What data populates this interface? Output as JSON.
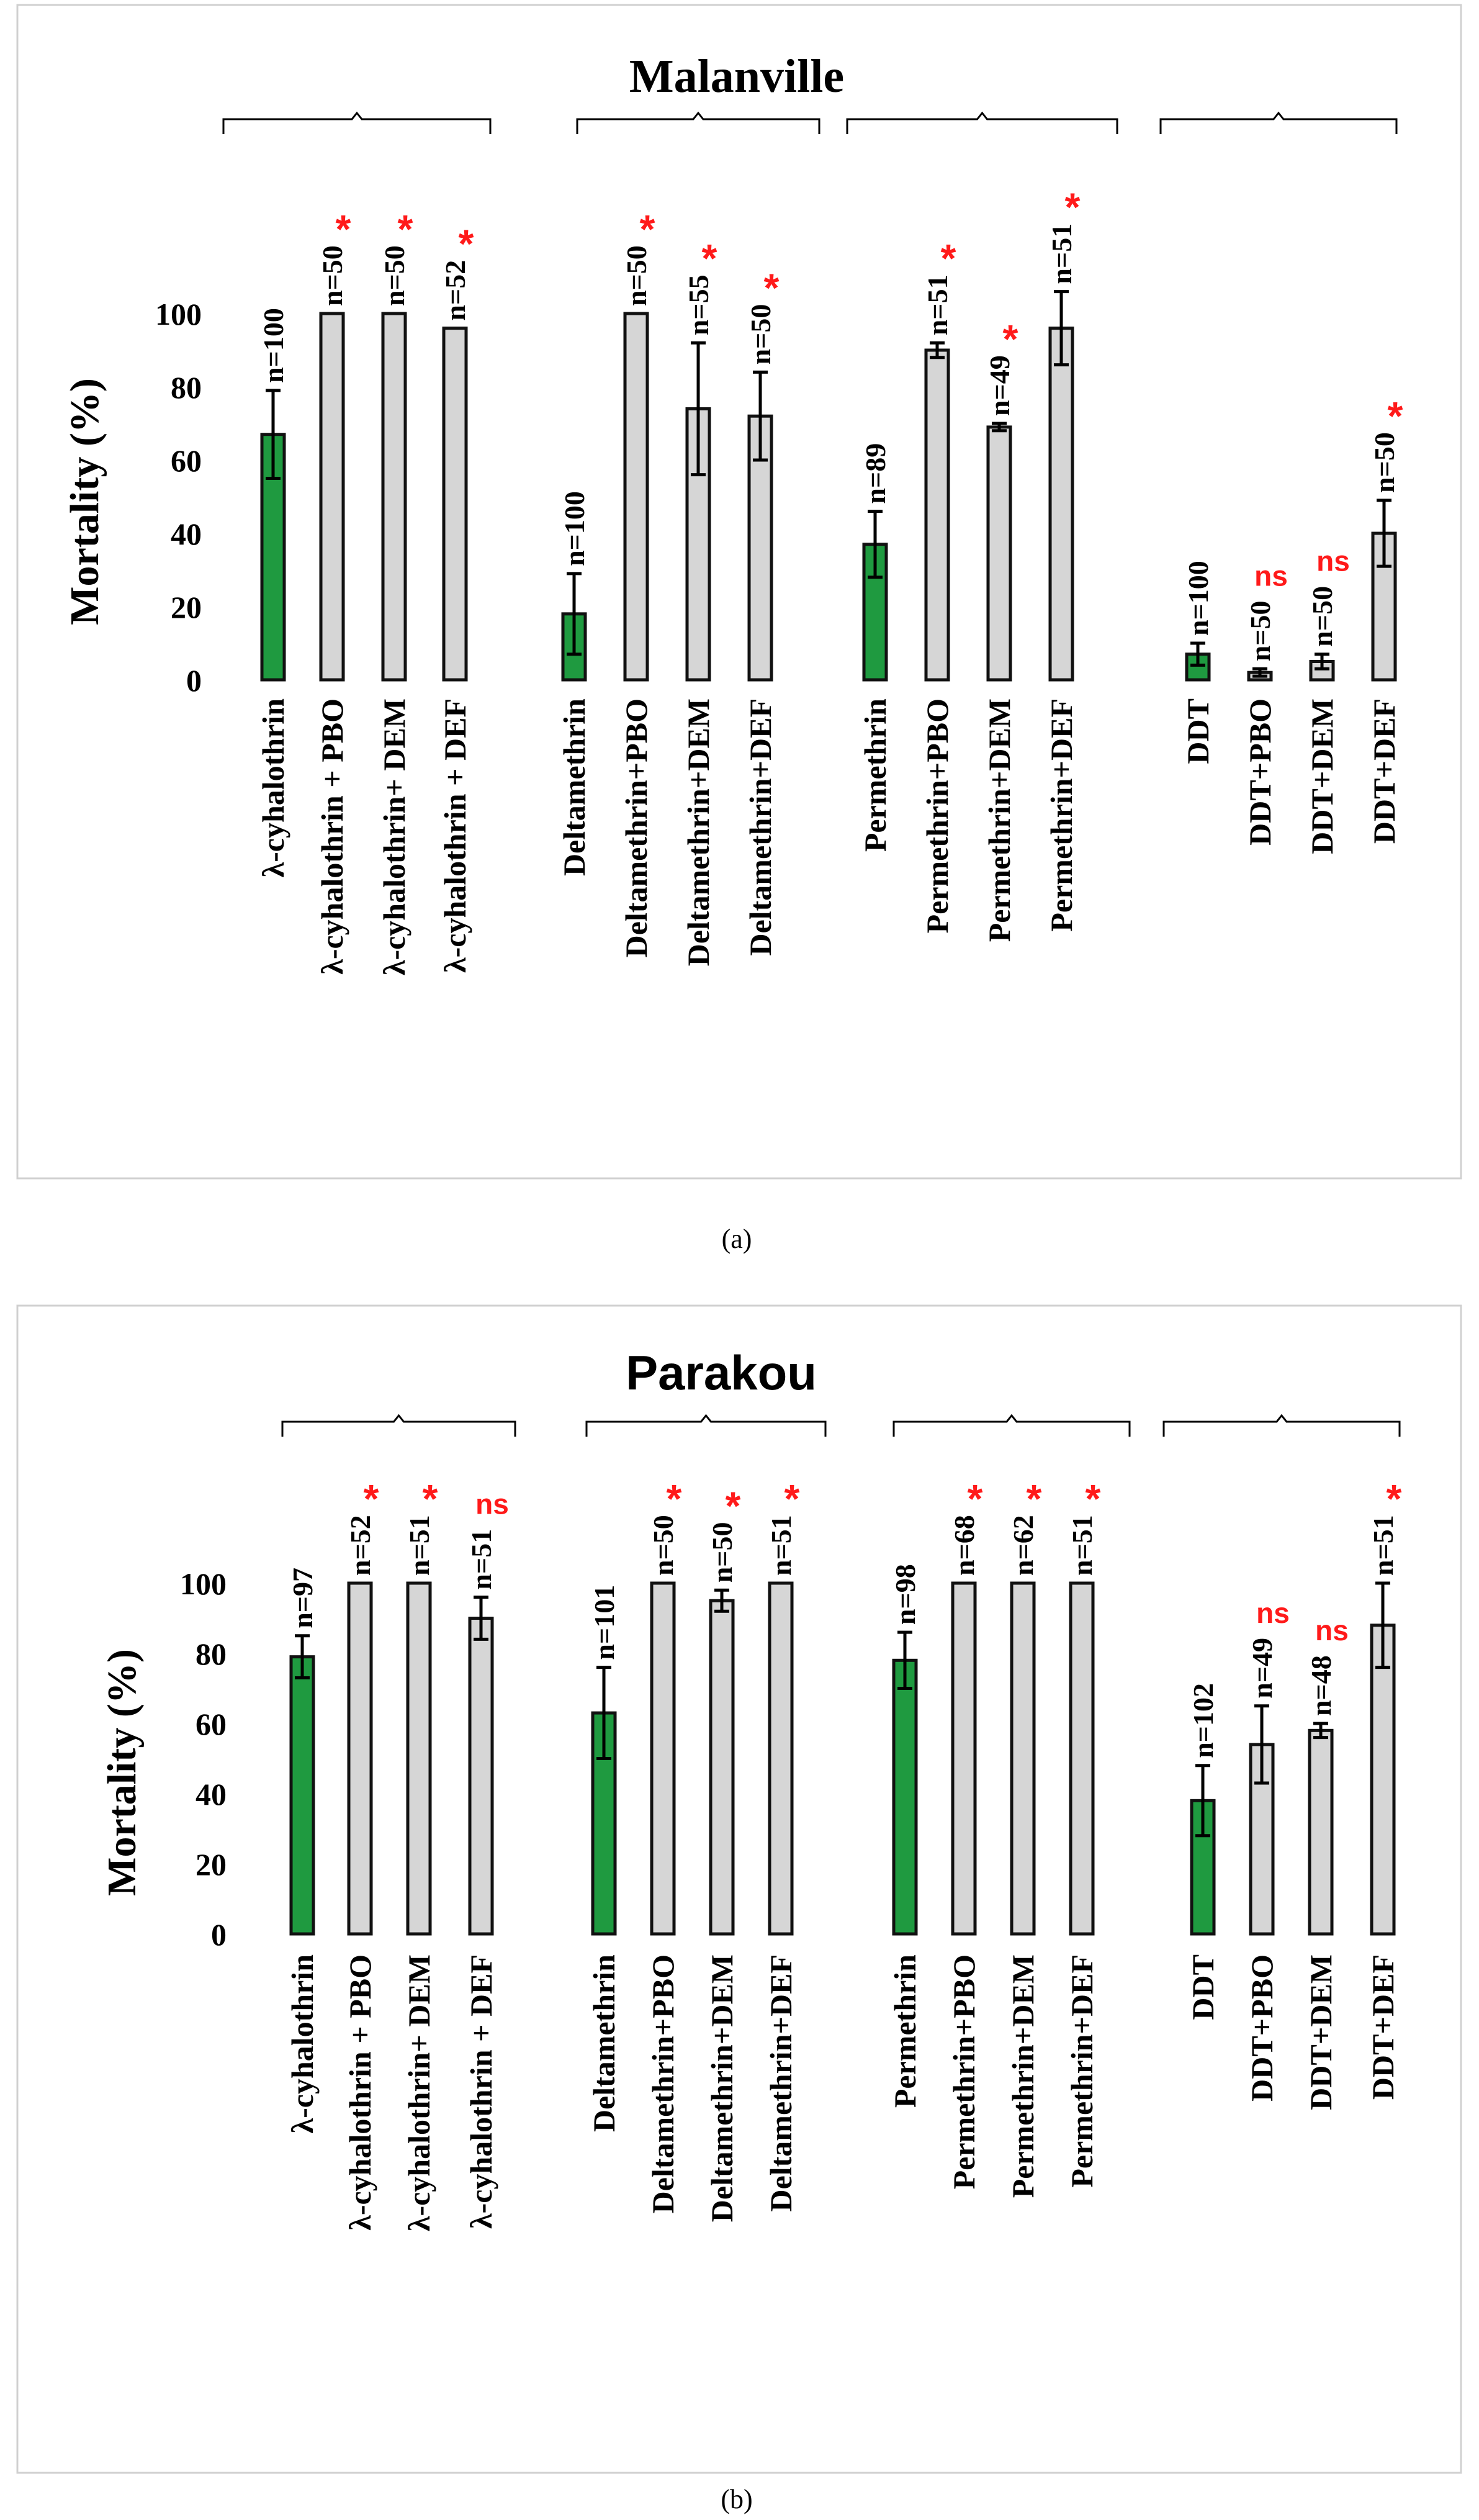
{
  "chart_data": [
    {
      "type": "bar",
      "caption": "(a)",
      "title": "Malanville",
      "ylabel": "Mortality (%)",
      "ylim": [
        0,
        100
      ],
      "yticks": [
        "0",
        "20",
        "40",
        "60",
        "80",
        "100"
      ],
      "groups": [
        {
          "bars": [
            {
              "label": "λ-cyhalothrin",
              "value": 67,
              "err": 12,
              "n": "n=100",
              "sig": "",
              "control": true
            },
            {
              "label": "λ-cyhalothrin + PBO",
              "value": 100,
              "err": 0,
              "n": "n=50",
              "sig": "*",
              "control": false
            },
            {
              "label": "λ-cyhalothrin+ DEM",
              "value": 100,
              "err": 0,
              "n": "n=50",
              "sig": "*",
              "control": false
            },
            {
              "label": "λ-cyhalothrin + DEF",
              "value": 96,
              "err": 0,
              "n": "n=52",
              "sig": "*",
              "control": false
            }
          ]
        },
        {
          "bars": [
            {
              "label": "Deltamethrin",
              "value": 18,
              "err": 11,
              "n": "n=100",
              "sig": "",
              "control": true
            },
            {
              "label": "Deltamethrin+PBO",
              "value": 100,
              "err": 0,
              "n": "n=50",
              "sig": "*",
              "control": false
            },
            {
              "label": "Deltamethrin+DEM",
              "value": 74,
              "err": 18,
              "n": "n=55",
              "sig": "*",
              "control": false
            },
            {
              "label": "Deltamethrin+DEF",
              "value": 72,
              "err": 12,
              "n": "n=50",
              "sig": "*",
              "control": false
            }
          ]
        },
        {
          "bars": [
            {
              "label": "Permethrin",
              "value": 37,
              "err": 9,
              "n": "n=89",
              "sig": "",
              "control": true
            },
            {
              "label": "Permethrin+PBO",
              "value": 90,
              "err": 2,
              "n": "n=51",
              "sig": "*",
              "control": false
            },
            {
              "label": "Permethrin+DEM",
              "value": 69,
              "err": 1,
              "n": "n=49",
              "sig": "*",
              "control": false
            },
            {
              "label": "Permethrin+DEF",
              "value": 96,
              "err": 10,
              "n": "n=51",
              "sig": "*",
              "control": false
            }
          ]
        },
        {
          "bars": [
            {
              "label": "DDT",
              "value": 7,
              "err": 3,
              "n": "n=100",
              "sig": "",
              "control": true
            },
            {
              "label": "DDT+PBO",
              "value": 2,
              "err": 1,
              "n": "n=50",
              "sig": "ns",
              "control": false
            },
            {
              "label": "DDT+DEM",
              "value": 5,
              "err": 2,
              "n": "n=50",
              "sig": "ns",
              "control": false
            },
            {
              "label": "DDT+DEF",
              "value": 40,
              "err": 9,
              "n": "n=50",
              "sig": "*",
              "control": false
            }
          ]
        }
      ]
    },
    {
      "type": "bar",
      "caption": "(b)",
      "title": "Parakou",
      "ylabel": "Mortality (%)",
      "ylim": [
        0,
        100
      ],
      "yticks": [
        "0",
        "20",
        "40",
        "60",
        "80",
        "100"
      ],
      "groups": [
        {
          "bars": [
            {
              "label": "λ-cyhalothrin",
              "value": 79,
              "err": 6,
              "n": "n=97",
              "sig": "",
              "control": true
            },
            {
              "label": "λ-cyhalothrin + PBO",
              "value": 100,
              "err": 0,
              "n": "n=52",
              "sig": "*",
              "control": false
            },
            {
              "label": "λ-cyhalothrin+ DEM",
              "value": 100,
              "err": 0,
              "n": "n=51",
              "sig": "*",
              "control": false
            },
            {
              "label": "λ-cyhalothrin + DEF",
              "value": 90,
              "err": 6,
              "n": "n=51",
              "sig": "ns",
              "control": false
            }
          ]
        },
        {
          "bars": [
            {
              "label": "Deltamethrin",
              "value": 63,
              "err": 13,
              "n": "n=101",
              "sig": "",
              "control": true
            },
            {
              "label": "Deltamethrin+PBO",
              "value": 100,
              "err": 0,
              "n": "n=50",
              "sig": "*",
              "control": false
            },
            {
              "label": "Deltamethrin+DEM",
              "value": 95,
              "err": 3,
              "n": "n=50",
              "sig": "*",
              "control": false
            },
            {
              "label": "Deltamethrin+DEF",
              "value": 100,
              "err": 0,
              "n": "n=51",
              "sig": "*",
              "control": false
            }
          ]
        },
        {
          "bars": [
            {
              "label": "Permethrin",
              "value": 78,
              "err": 8,
              "n": "n=98",
              "sig": "",
              "control": true
            },
            {
              "label": "Permethrin+PBO",
              "value": 100,
              "err": 0,
              "n": "n=68",
              "sig": "*",
              "control": false
            },
            {
              "label": "Permethrin+DEM",
              "value": 100,
              "err": 0,
              "n": "n=62",
              "sig": "*",
              "control": false
            },
            {
              "label": "Permethrin+DEF",
              "value": 100,
              "err": 0,
              "n": "n=51",
              "sig": "*",
              "control": false
            }
          ]
        },
        {
          "bars": [
            {
              "label": "DDT",
              "value": 38,
              "err": 10,
              "n": "n=102",
              "sig": "",
              "control": true
            },
            {
              "label": "DDT+PBO",
              "value": 54,
              "err": 11,
              "n": "n=49",
              "sig": "ns",
              "control": false
            },
            {
              "label": "DDT+DEM",
              "value": 58,
              "err": 2,
              "n": "n=48",
              "sig": "ns",
              "control": false
            },
            {
              "label": "DDT+DEF",
              "value": 88,
              "err": 12,
              "n": "n=51",
              "sig": "*",
              "control": false
            }
          ]
        }
      ]
    }
  ],
  "colors": {
    "control": "#1f9a40",
    "treatment": "#d6d6d6",
    "outline": "#111111",
    "significance": "#ff1a1a",
    "frame": "#d0d0d0"
  }
}
